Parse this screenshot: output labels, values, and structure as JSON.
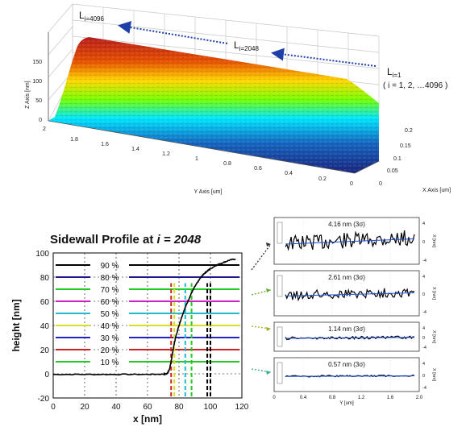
{
  "colors": {
    "surface_low": "#1a237e",
    "surface_high": "#b71c1c",
    "arrow": "#1f3fa8",
    "fit_line": "#1e4fd8"
  },
  "top_plot": {
    "z_label": "Z Axis [nm]",
    "y_label": "Y Axis [um]",
    "x_label": "X Axis [um]",
    "z_ticks": [
      "150",
      "100",
      "50",
      "0"
    ],
    "y_ticks": [
      "2",
      "1.8",
      "1.6",
      "1.4",
      "1.2",
      "1",
      "0.8",
      "0.6",
      "0.4",
      "0.2",
      "0"
    ],
    "x_ticks": [
      "0.2",
      "0.15",
      "0.1",
      "0.05",
      "0"
    ],
    "annotations": {
      "l_last": {
        "L": "L",
        "sub": "i=4096"
      },
      "l_mid": {
        "L": "L",
        "sub": "i=2048"
      },
      "l_first": {
        "L": "L",
        "sub": "i=1"
      },
      "range": "( i = 1, 2, …4096 )"
    }
  },
  "profile_chart": {
    "title_prefix": "Sidewall Profile at ",
    "title_i": "i",
    "title_suffix": " = 2048",
    "xlabel": "x [nm]",
    "ylabel": "height [nm]",
    "x_ticks": [
      "0",
      "20",
      "40",
      "60",
      "80",
      "100",
      "120"
    ],
    "y_ticks": [
      "100",
      "80",
      "60",
      "40",
      "20",
      "0",
      "-20"
    ]
  },
  "chart_data": [
    {
      "type": "line",
      "title": "Sidewall Profile at i = 2048",
      "xlabel": "x [nm]",
      "ylabel": "height [nm]",
      "xlim": [
        0,
        120
      ],
      "ylim": [
        -20,
        100
      ],
      "grid": true,
      "profile": {
        "x": [
          0,
          20,
          40,
          60,
          70,
          72,
          73,
          74,
          75,
          76,
          77,
          78,
          80,
          82,
          84,
          86,
          88,
          90,
          92,
          94,
          96,
          98,
          100,
          104,
          108,
          112,
          116
        ],
        "y": [
          -0.5,
          -0.5,
          -0.5,
          -0.5,
          -0.3,
          0,
          1,
          4,
          10,
          18,
          25,
          31,
          40,
          48,
          55,
          61,
          67,
          72,
          76,
          80,
          83,
          85,
          87,
          90,
          92,
          94,
          95
        ]
      },
      "levels": [
        {
          "label": "90 %",
          "y": 90,
          "color": "#000000"
        },
        {
          "label": "80 %",
          "y": 80,
          "color": "#1a1a8c"
        },
        {
          "label": "70 %",
          "y": 70,
          "color": "#22cc22"
        },
        {
          "label": "60 %",
          "y": 60,
          "color": "#cc22cc"
        },
        {
          "label": "50 %",
          "y": 50,
          "color": "#22bbcc"
        },
        {
          "label": "40 %",
          "y": 40,
          "color": "#dddd22"
        },
        {
          "label": "30 %",
          "y": 30,
          "color": "#2222cc"
        },
        {
          "label": "20 %",
          "y": 20,
          "color": "#cc2222"
        },
        {
          "label": "10 %",
          "y": 10,
          "color": "#22cc22"
        }
      ],
      "cut_lines": [
        {
          "x": 75,
          "color": "#cc2222"
        },
        {
          "x": 77,
          "color": "#dddd22"
        },
        {
          "x": 84,
          "color": "#22bbcc"
        },
        {
          "x": 88,
          "color": "#22cc22"
        },
        {
          "x": 98,
          "color": "#000000"
        },
        {
          "x": 100,
          "color": "#000000"
        }
      ]
    },
    {
      "type": "line",
      "panels_xlabel": "Y [um]",
      "panels_ylabel": "X [nm]",
      "x_ticks": [
        "0",
        "0.4",
        "0.8",
        "1.2",
        "1.6",
        "2.0"
      ],
      "y_ticks_right": [
        "4",
        "0",
        "-4"
      ],
      "panels": [
        {
          "label": "4.16 nm (3σ)",
          "sigma": 4.16,
          "arrow_color": "#333333"
        },
        {
          "label": "2.61 nm (3σ)",
          "sigma": 2.61,
          "arrow_color": "#66aa33"
        },
        {
          "label": "1.14 nm (3σ)",
          "sigma": 1.14,
          "arrow_color": "#aaaa22"
        },
        {
          "label": "0.57 nm (3σ)",
          "sigma": 0.57,
          "arrow_color": "#33aa88"
        }
      ]
    }
  ]
}
